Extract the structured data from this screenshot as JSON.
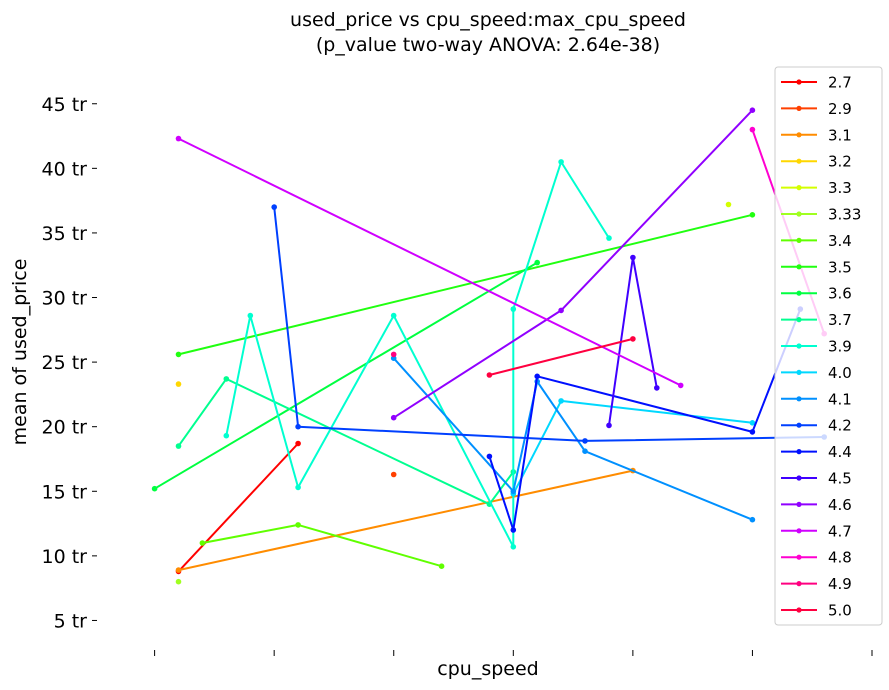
{
  "chart_data": {
    "type": "line",
    "title": [
      "used_price vs cpu_speed:max_cpu_speed",
      "(p_value two-way ANOVA: 2.64e-38)"
    ],
    "xlabel": "cpu_speed",
    "ylabel": "mean of used_price",
    "x_tick_labels_shown": false,
    "x_ticks": [
      1.6,
      2.1,
      2.6,
      3.1,
      3.6,
      4.1,
      4.6
    ],
    "ylim": [
      5,
      45
    ],
    "y_ticks": [
      5,
      10,
      15,
      20,
      25,
      30,
      35,
      40,
      45
    ],
    "y_tick_labels": [
      "5 tr",
      "10 tr",
      "15 tr",
      "20 tr",
      "25 tr",
      "30 tr",
      "35 tr",
      "40 tr",
      "45 tr"
    ],
    "grid": false,
    "legend_position": "right",
    "series": [
      {
        "name": "2.7",
        "color": "#ff0000",
        "points": [
          [
            1.7,
            8.8
          ],
          [
            2.2,
            18.7
          ]
        ]
      },
      {
        "name": "2.9",
        "color": "#ff4000",
        "points": [
          [
            2.6,
            16.3
          ]
        ]
      },
      {
        "name": "3.1",
        "color": "#ff8c00",
        "points": [
          [
            1.7,
            8.9
          ],
          [
            3.6,
            16.6
          ]
        ]
      },
      {
        "name": "3.2",
        "color": "#ffd700",
        "points": [
          [
            1.7,
            23.3
          ]
        ]
      },
      {
        "name": "3.3",
        "color": "#d4ff00",
        "points": [
          [
            4.0,
            37.2
          ]
        ]
      },
      {
        "name": "3.33",
        "color": "#a0ff20",
        "points": [
          [
            1.7,
            8.0
          ]
        ]
      },
      {
        "name": "3.4",
        "color": "#60ff00",
        "points": [
          [
            1.8,
            11.0
          ],
          [
            2.2,
            12.4
          ],
          [
            2.8,
            9.2
          ]
        ]
      },
      {
        "name": "3.5",
        "color": "#20ff10",
        "points": [
          [
            1.7,
            25.6
          ],
          [
            4.1,
            36.4
          ]
        ]
      },
      {
        "name": "3.6",
        "color": "#00ff40",
        "points": [
          [
            1.6,
            15.2
          ],
          [
            3.2,
            32.7
          ]
        ]
      },
      {
        "name": "3.7",
        "color": "#00ff90",
        "points": [
          [
            1.7,
            18.5
          ],
          [
            1.9,
            23.7
          ],
          [
            3.0,
            14.0
          ],
          [
            3.1,
            16.5
          ]
        ]
      },
      {
        "name": "3.9",
        "color": "#00ffd0",
        "points": [
          [
            1.9,
            19.3
          ],
          [
            2.0,
            28.6
          ],
          [
            2.2,
            15.3
          ],
          [
            2.6,
            28.6
          ],
          [
            3.1,
            10.7
          ],
          [
            3.1,
            29.1
          ],
          [
            3.3,
            40.5
          ],
          [
            3.5,
            34.6
          ]
        ]
      },
      {
        "name": "4.0",
        "color": "#00d8ff",
        "points": [
          [
            3.1,
            14.8
          ],
          [
            3.3,
            22.0
          ],
          [
            4.1,
            20.3
          ]
        ]
      },
      {
        "name": "4.1",
        "color": "#0090ff",
        "points": [
          [
            2.6,
            25.3
          ],
          [
            3.1,
            15.0
          ],
          [
            3.2,
            23.5
          ],
          [
            3.4,
            18.1
          ],
          [
            4.1,
            12.8
          ]
        ]
      },
      {
        "name": "4.2",
        "color": "#0040ff",
        "points": [
          [
            2.1,
            37.0
          ],
          [
            2.2,
            20.0
          ],
          [
            3.4,
            18.9
          ],
          [
            4.4,
            19.2
          ]
        ]
      },
      {
        "name": "4.4",
        "color": "#0010ff",
        "points": [
          [
            3.0,
            17.7
          ],
          [
            3.1,
            12.0
          ],
          [
            3.2,
            23.9
          ],
          [
            4.1,
            19.6
          ],
          [
            4.3,
            29.1
          ]
        ]
      },
      {
        "name": "4.5",
        "color": "#4000ff",
        "points": [
          [
            3.5,
            20.1
          ],
          [
            3.6,
            33.1
          ],
          [
            3.7,
            23.0
          ]
        ]
      },
      {
        "name": "4.6",
        "color": "#9000ff",
        "points": [
          [
            2.6,
            20.7
          ],
          [
            3.3,
            29.0
          ],
          [
            4.1,
            44.5
          ]
        ]
      },
      {
        "name": "4.7",
        "color": "#d000ff",
        "points": [
          [
            1.7,
            42.3
          ],
          [
            3.8,
            23.2
          ]
        ]
      },
      {
        "name": "4.8",
        "color": "#ff00d0",
        "points": [
          [
            4.1,
            43.0
          ],
          [
            4.4,
            27.2
          ]
        ]
      },
      {
        "name": "4.9",
        "color": "#ff0080",
        "points": [
          [
            2.6,
            25.6
          ]
        ]
      },
      {
        "name": "5.0",
        "color": "#ff0040",
        "points": [
          [
            3.0,
            24.0
          ],
          [
            3.6,
            26.8
          ]
        ]
      }
    ]
  }
}
